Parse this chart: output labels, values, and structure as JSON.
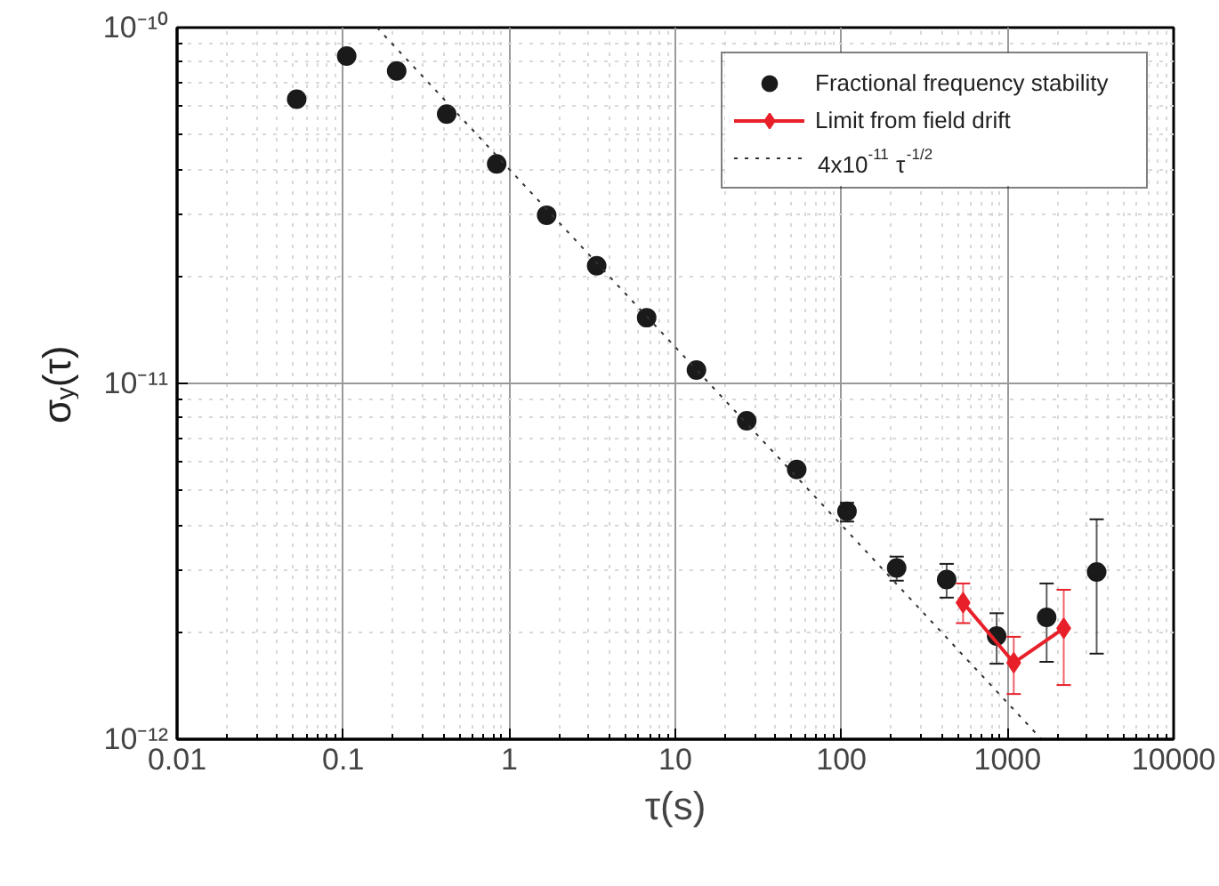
{
  "chart_data": {
    "type": "scatter",
    "xlabel": "τ(s)",
    "ylabel": "σ$_{y}$(τ)",
    "log": "xy",
    "grid": true,
    "legend": "top right",
    "marker": "circle",
    "xlim": [
      0.01,
      10000
    ],
    "ylim": [
      1e-12,
      1e-10
    ],
    "xticks": [
      {
        "value": 0.01,
        "label": "0.01"
      },
      {
        "value": 0.1,
        "label": "0.1"
      },
      {
        "value": 1,
        "label": "1"
      },
      {
        "value": 10,
        "label": "10"
      },
      {
        "value": 100,
        "label": "100"
      },
      {
        "value": 1000,
        "label": "1000"
      },
      {
        "value": 10000,
        "label": "10000"
      }
    ],
    "yticks": [
      {
        "value": 1e-12,
        "label": "10⁻¹²"
      },
      {
        "value": 1e-11,
        "label": "10⁻¹¹"
      },
      {
        "value": 1e-10,
        "label": "10⁻¹⁰"
      }
    ],
    "series": [
      {
        "name": "Fractional frequency stability",
        "color": "#1a1a1a",
        "x": [
          0.0525,
          0.105,
          0.21,
          0.42,
          0.84,
          1.68,
          3.36,
          6.72,
          13.4,
          26.9,
          53.8,
          108,
          215,
          430,
          860,
          1720,
          3440
        ],
        "values": [
          6.29e-11,
          8.32e-11,
          7.55e-11,
          5.71e-11,
          4.14e-11,
          2.97e-11,
          2.14e-11,
          1.53e-11,
          1.09e-11,
          7.85e-12,
          5.73e-12,
          4.37e-12,
          3.03e-12,
          2.81e-12,
          1.95e-12,
          2.2e-12,
          2.95e-12
        ],
        "errors": [
          null,
          null,
          null,
          null,
          null,
          null,
          null,
          null,
          null,
          null,
          null,
          [
            4.09e-12,
            4.62e-12
          ],
          [
            2.79e-12,
            3.26e-12
          ],
          [
            2.5e-12,
            3.11e-12
          ],
          [
            1.63e-12,
            2.26e-12
          ],
          [
            1.65e-12,
            2.74e-12
          ],
          [
            1.74e-12,
            4.15e-12
          ]
        ]
      },
      {
        "name": "Limit from field drift",
        "type": "line",
        "marker": "diamond",
        "line_style": "solid",
        "color": "#e8202a",
        "x": [
          540,
          1090,
          2180
        ],
        "values": [
          2.42e-12,
          1.64e-12,
          2.05e-12
        ],
        "errors": [
          [
            2.12e-12,
            2.74e-12
          ],
          [
            1.34e-12,
            1.94e-12
          ],
          [
            1.42e-12,
            2.63e-12
          ]
        ]
      },
      {
        "name": "4x10$^{-11}$ τ$^{-1/2}$",
        "type": "line",
        "marker": "none",
        "line_style": "dotted",
        "color": "#333333",
        "x": [
          0.16,
          1600
        ],
        "values": [
          1e-10,
          1e-12
        ]
      }
    ]
  }
}
